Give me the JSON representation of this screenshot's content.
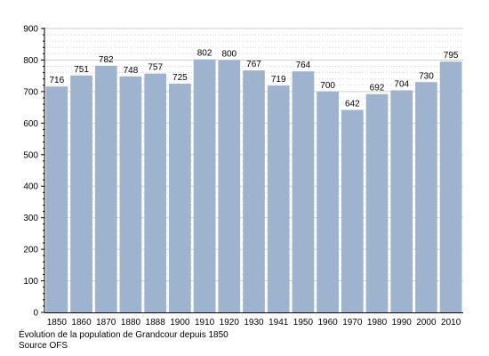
{
  "chart_data": {
    "type": "bar",
    "categories": [
      "1850",
      "1860",
      "1870",
      "1880",
      "1888",
      "1900",
      "1910",
      "1920",
      "1930",
      "1941",
      "1950",
      "1960",
      "1970",
      "1980",
      "1990",
      "2000",
      "2010"
    ],
    "values": [
      716,
      751,
      782,
      748,
      757,
      725,
      802,
      800,
      767,
      719,
      764,
      700,
      642,
      692,
      704,
      730,
      795
    ],
    "ylim": [
      0,
      900
    ],
    "yticks": [
      0,
      100,
      200,
      300,
      400,
      500,
      600,
      700,
      800,
      900
    ],
    "grid": true,
    "bar_color": "#9db3ce",
    "grid_color": "#cfcfcf"
  },
  "caption": {
    "line1": "Évolution de la population de Grandcour depuis 1850",
    "line2": "Source OFS"
  }
}
